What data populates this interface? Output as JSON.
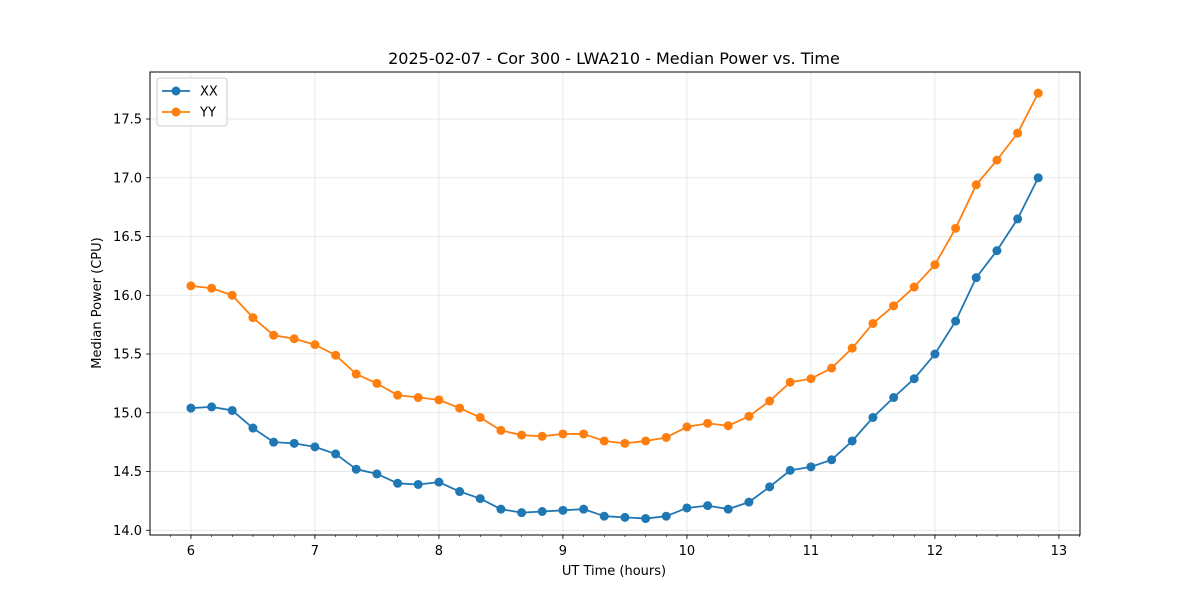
{
  "chart_data": {
    "type": "line",
    "title": "2025-02-07 - Cor 300 - LWA210 - Median Power vs. Time",
    "xlabel": "UT Time (hours)",
    "ylabel": "Median Power (CPU)",
    "xlim": [
      5.67,
      13.17
    ],
    "ylim": [
      13.96,
      17.9
    ],
    "xticks": [
      6,
      7,
      8,
      9,
      10,
      11,
      12,
      13
    ],
    "xtick_labels": [
      "6",
      "7",
      "8",
      "9",
      "10",
      "11",
      "12",
      "13"
    ],
    "yticks": [
      14.0,
      14.5,
      15.0,
      15.5,
      16.0,
      16.5,
      17.0,
      17.5
    ],
    "ytick_labels": [
      "14.0",
      "14.5",
      "15.0",
      "15.5",
      "16.0",
      "16.5",
      "17.0",
      "17.5"
    ],
    "grid": true,
    "legend": "top-left",
    "x": [
      6.0,
      6.167,
      6.333,
      6.5,
      6.667,
      6.833,
      7.0,
      7.167,
      7.333,
      7.5,
      7.667,
      7.833,
      8.0,
      8.167,
      8.333,
      8.5,
      8.667,
      8.833,
      9.0,
      9.167,
      9.333,
      9.5,
      9.667,
      9.833,
      10.0,
      10.167,
      10.333,
      10.5,
      10.667,
      10.833,
      11.0,
      11.167,
      11.333,
      11.5,
      11.667,
      11.833,
      12.0,
      12.167,
      12.333,
      12.5,
      12.667,
      12.833
    ],
    "series": [
      {
        "name": "XX",
        "color": "#1f77b4",
        "values": [
          15.04,
          15.05,
          15.02,
          14.87,
          14.75,
          14.74,
          14.71,
          14.65,
          14.52,
          14.48,
          14.4,
          14.39,
          14.41,
          14.33,
          14.27,
          14.18,
          14.15,
          14.16,
          14.17,
          14.18,
          14.12,
          14.11,
          14.1,
          14.12,
          14.19,
          14.21,
          14.18,
          14.24,
          14.37,
          14.51,
          14.54,
          14.6,
          14.76,
          14.96,
          15.13,
          15.29,
          15.5,
          15.78,
          16.15,
          16.38,
          16.65,
          17.0
        ]
      },
      {
        "name": "YY",
        "color": "#ff7f0e",
        "values": [
          16.08,
          16.06,
          16.0,
          15.81,
          15.66,
          15.63,
          15.58,
          15.49,
          15.33,
          15.25,
          15.15,
          15.13,
          15.11,
          15.04,
          14.96,
          14.85,
          14.81,
          14.8,
          14.82,
          14.82,
          14.76,
          14.74,
          14.76,
          14.79,
          14.88,
          14.91,
          14.89,
          14.97,
          15.1,
          15.26,
          15.29,
          15.38,
          15.55,
          15.76,
          15.91,
          16.07,
          16.26,
          16.57,
          16.94,
          17.15,
          17.38,
          17.72
        ]
      }
    ]
  }
}
